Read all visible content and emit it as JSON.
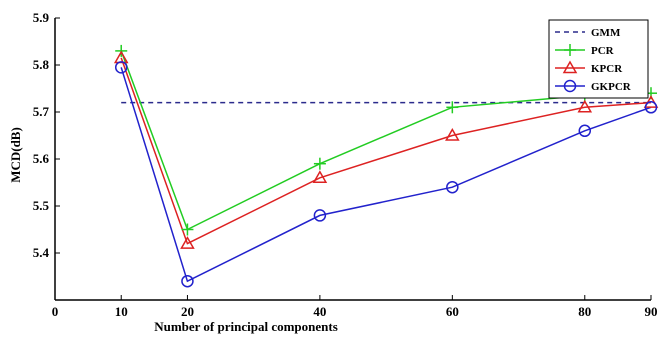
{
  "chart_data": {
    "type": "line",
    "xlabel": "Number of principal components",
    "ylabel": "MCD(dB)",
    "xlim": [
      0,
      90
    ],
    "ylim": [
      5.3,
      5.9
    ],
    "x_ticks": [
      0,
      20,
      40,
      60,
      80,
      90
    ],
    "x_tick_labels": [
      "0",
      "20",
      "40",
      "60",
      "80",
      "90"
    ],
    "x_tick_marks": [
      0,
      10,
      20,
      40,
      60,
      80,
      90
    ],
    "y_ticks": [
      5.4,
      5.5,
      5.6,
      5.7,
      5.8,
      5.9
    ],
    "y_tick_labels": [
      "5.4",
      "5.5",
      "5.6",
      "5.7",
      "5.8",
      "5.9"
    ],
    "extra_x_label": {
      "value": 10,
      "label": "10"
    },
    "grid": false,
    "legend_position": "top-right",
    "x": [
      10,
      20,
      40,
      60,
      80,
      90
    ],
    "series": [
      {
        "name": "GMM",
        "style": "dashed",
        "marker": "none",
        "color": "#2b2b8c",
        "x": [
          10,
          90
        ],
        "values": [
          5.72,
          5.72
        ]
      },
      {
        "name": "PCR",
        "style": "solid",
        "marker": "plus",
        "color": "#22cc22",
        "values": [
          5.83,
          5.45,
          5.59,
          5.71,
          5.735,
          5.74
        ]
      },
      {
        "name": "KPCR",
        "style": "solid",
        "marker": "triangle",
        "color": "#dd2222",
        "values": [
          5.815,
          5.42,
          5.56,
          5.65,
          5.71,
          5.72
        ]
      },
      {
        "name": "GKPCR",
        "style": "solid",
        "marker": "circle",
        "color": "#2222cc",
        "values": [
          5.795,
          5.34,
          5.48,
          5.54,
          5.66,
          5.71
        ]
      }
    ]
  }
}
